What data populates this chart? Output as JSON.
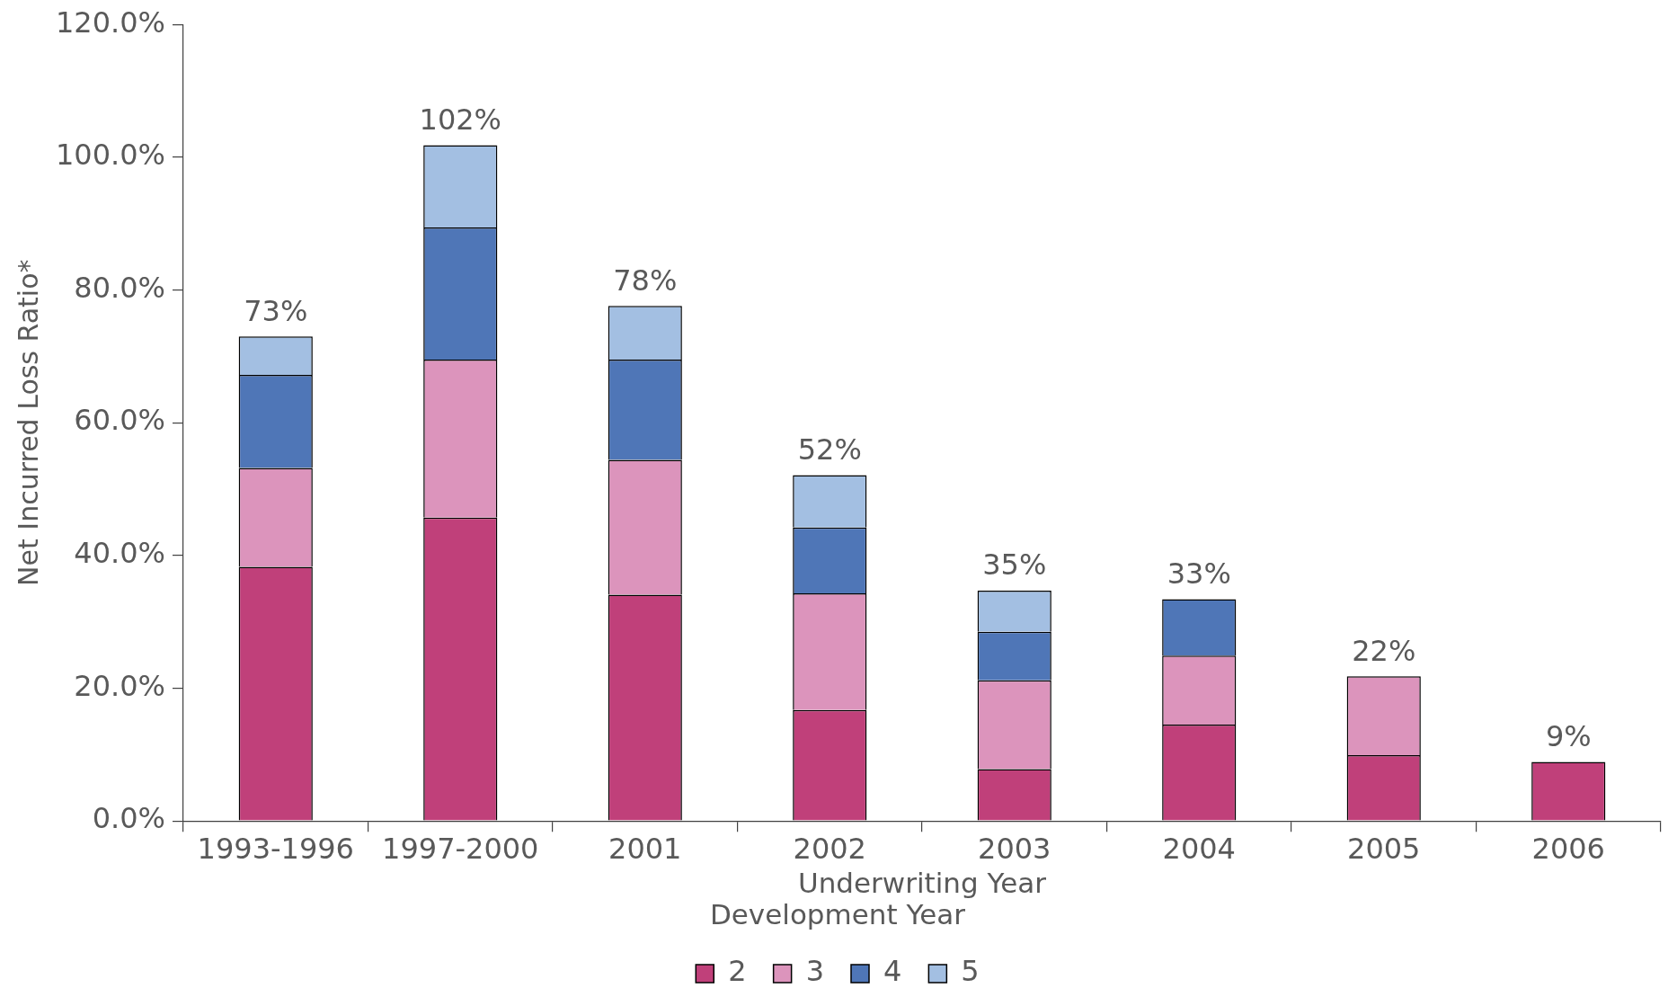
{
  "chart_data": {
    "type": "bar",
    "stacked": true,
    "categories": [
      "1993-1996",
      "1997-2000",
      "2001",
      "2002",
      "2003",
      "2004",
      "2005",
      "2006"
    ],
    "series": [
      {
        "name": "2",
        "color": "#c0407a",
        "values": [
          38.3,
          45.7,
          34.1,
          16.7,
          7.8,
          14.5,
          9.9,
          8.9
        ]
      },
      {
        "name": "3",
        "color": "#dc94bc",
        "values": [
          14.9,
          23.8,
          20.3,
          17.6,
          13.4,
          10.4,
          11.9,
          null
        ]
      },
      {
        "name": "4",
        "color": "#4f76b7",
        "values": [
          14.0,
          19.9,
          15.1,
          9.9,
          7.3,
          8.5,
          null,
          null
        ]
      },
      {
        "name": "5",
        "color": "#a3bfe2",
        "values": [
          5.8,
          12.4,
          8.1,
          7.9,
          6.2,
          null,
          null,
          null
        ]
      }
    ],
    "ylim": [
      0,
      120
    ],
    "yticks": [
      {
        "value": 0,
        "label": "0.0%"
      },
      {
        "value": 20,
        "label": "20.0%"
      },
      {
        "value": 40,
        "label": "40.0%"
      },
      {
        "value": 60,
        "label": "60.0%"
      },
      {
        "value": 80,
        "label": "80.0%"
      },
      {
        "value": 100,
        "label": "100.0%"
      },
      {
        "value": 120,
        "label": "120.0%"
      }
    ],
    "xlabel": "Underwriting Year",
    "ylabel": "Net Incurred Loss Ratio*",
    "legend": "bottom",
    "legend_title": "Development Year",
    "totals": [
      "73%",
      "102%",
      "78%",
      "52%",
      "35%",
      "33%",
      "22%",
      "9%"
    ]
  }
}
